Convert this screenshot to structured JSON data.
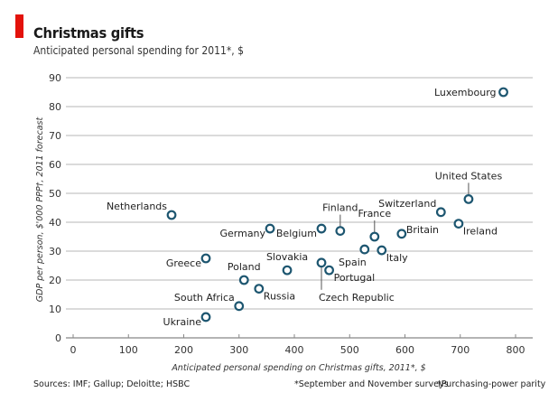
{
  "header": {
    "title": "Christmas gifts",
    "subtitle": "Anticipated personal spending for 2011*, $"
  },
  "footer": {
    "sources": "Sources: IMF; Gallup; Deloitte; HSBC",
    "note1": "*September and November surveys",
    "note2": "†Purchasing-power parity"
  },
  "colors": {
    "accent": "#e3120b",
    "marker": "#1d5670",
    "grid": "#cfcfcf",
    "axis": "#888888"
  },
  "chart_data": {
    "type": "scatter",
    "title": "Christmas gifts",
    "subtitle": "Anticipated personal spending for 2011*, $",
    "xlabel": "Anticipated personal spending on Christmas gifts, 2011*, $",
    "ylabel": "GDP per person, $'000 PPP†, 2011 forecast",
    "xlim": [
      0,
      800
    ],
    "ylim": [
      0,
      90
    ],
    "xticks": [
      0,
      100,
      200,
      300,
      400,
      500,
      600,
      700,
      800
    ],
    "yticks": [
      0,
      10,
      20,
      30,
      40,
      50,
      60,
      70,
      80,
      90
    ],
    "grid": "horizontal",
    "points": [
      {
        "name": "Luxembourg",
        "x": 778,
        "y": 85,
        "label_pos": "left"
      },
      {
        "name": "United States",
        "x": 715,
        "y": 48,
        "label_pos": "above-leader"
      },
      {
        "name": "Switzerland",
        "x": 665,
        "y": 43.5,
        "label_pos": "upper-left"
      },
      {
        "name": "Ireland",
        "x": 697,
        "y": 39.5,
        "label_pos": "lower-right"
      },
      {
        "name": "Britain",
        "x": 594,
        "y": 36,
        "label_pos": "upper-right"
      },
      {
        "name": "France",
        "x": 545,
        "y": 35,
        "label_pos": "above-leader"
      },
      {
        "name": "Italy",
        "x": 558,
        "y": 30.3,
        "label_pos": "lower-right"
      },
      {
        "name": "Spain",
        "x": 527,
        "y": 30.6,
        "label_pos": "below-left"
      },
      {
        "name": "Finland",
        "x": 483,
        "y": 37,
        "label_pos": "above-leader"
      },
      {
        "name": "Belgium",
        "x": 449,
        "y": 37.8,
        "label_pos": "lower-left"
      },
      {
        "name": "Portugal",
        "x": 463,
        "y": 23.4,
        "label_pos": "lower-right"
      },
      {
        "name": "Czech Republic",
        "x": 449,
        "y": 26,
        "label_pos": "below-leader"
      },
      {
        "name": "Slovakia",
        "x": 387,
        "y": 23.4,
        "label_pos": "above"
      },
      {
        "name": "Germany",
        "x": 356,
        "y": 37.8,
        "label_pos": "lower-left"
      },
      {
        "name": "Netherlands",
        "x": 178,
        "y": 42.5,
        "label_pos": "upper-left"
      },
      {
        "name": "Greece",
        "x": 240,
        "y": 27.5,
        "label_pos": "lower-left"
      },
      {
        "name": "Poland",
        "x": 309,
        "y": 20,
        "label_pos": "above"
      },
      {
        "name": "Russia",
        "x": 336,
        "y": 17,
        "label_pos": "lower-right"
      },
      {
        "name": "South Africa",
        "x": 300,
        "y": 11,
        "label_pos": "upper-left"
      },
      {
        "name": "Ukraine",
        "x": 240,
        "y": 7.2,
        "label_pos": "lower-left"
      }
    ]
  }
}
